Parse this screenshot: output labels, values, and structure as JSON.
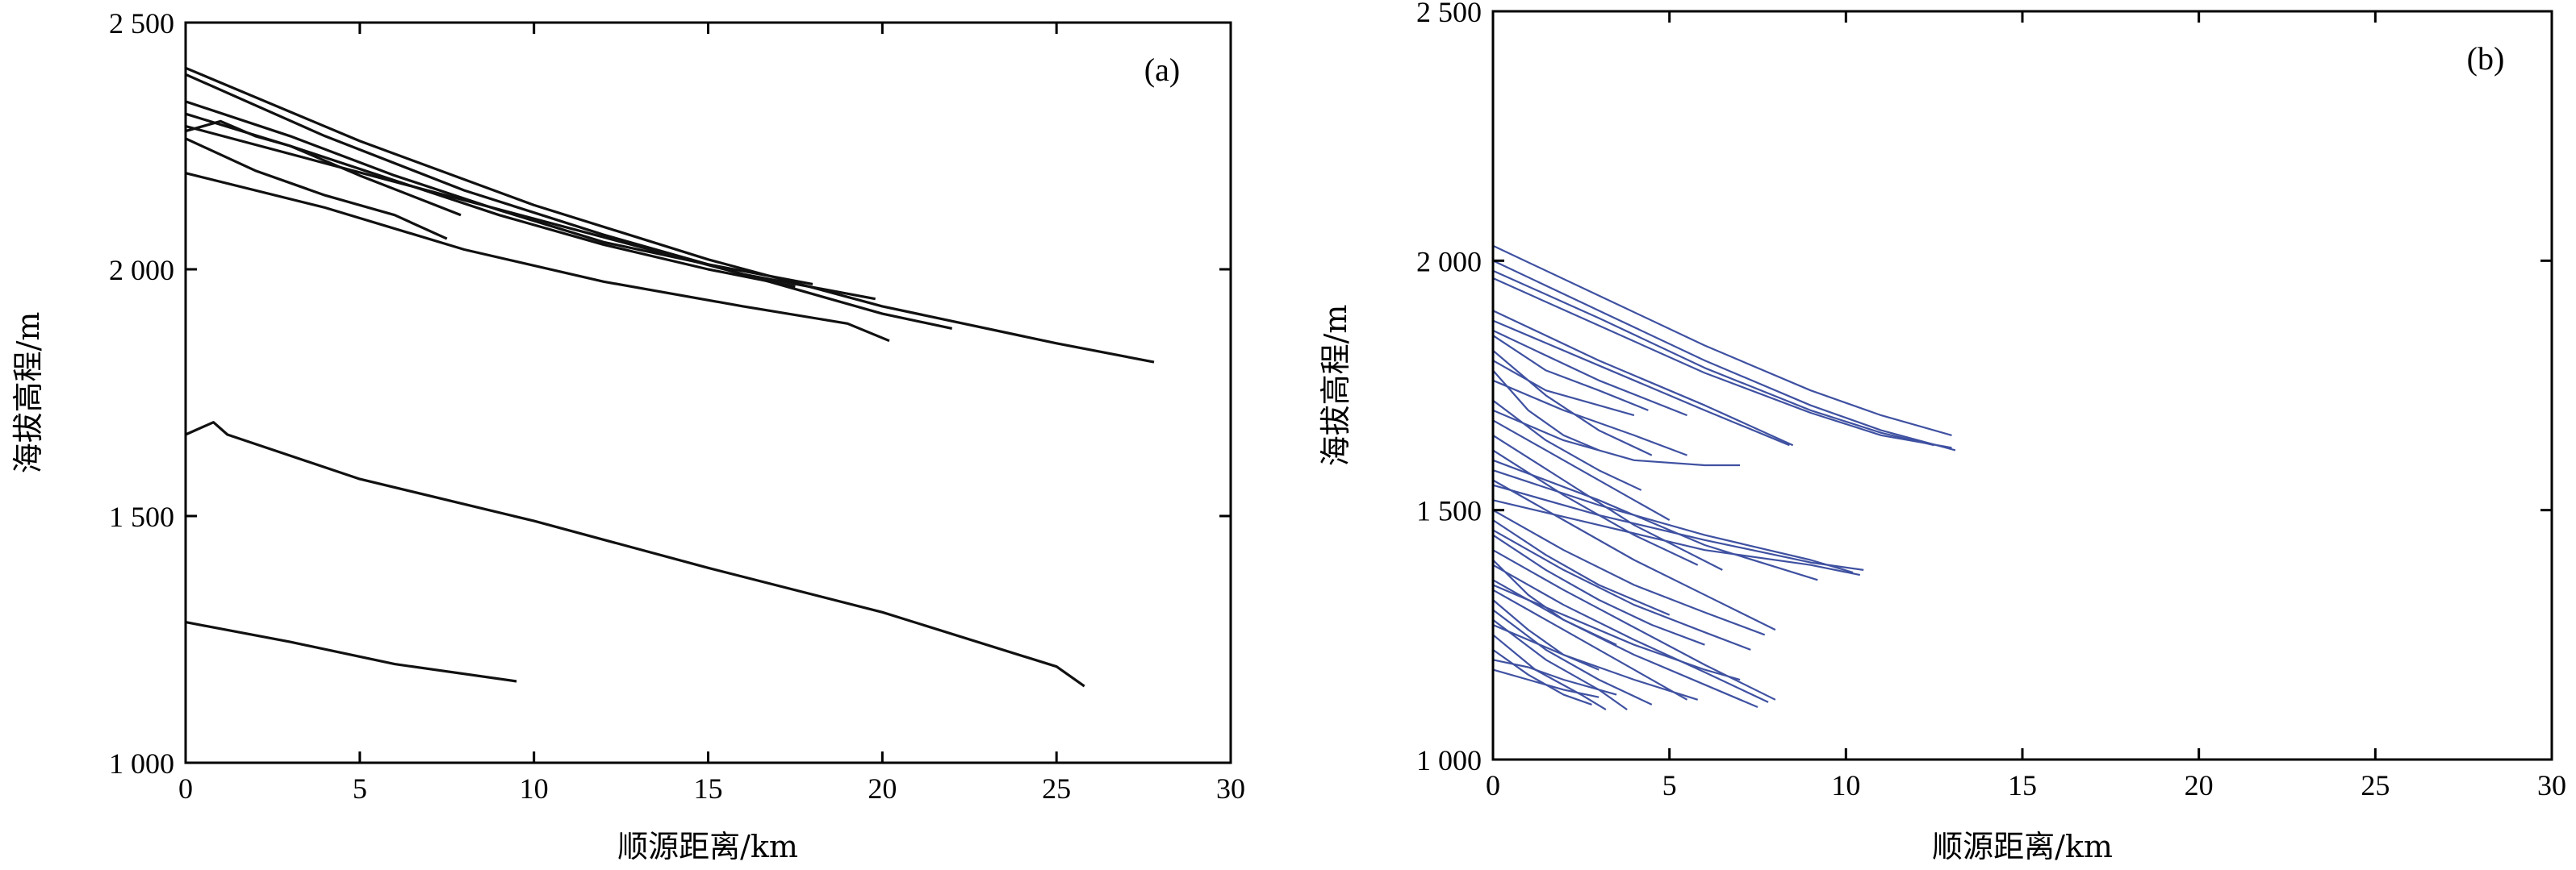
{
  "chart_data": [
    {
      "type": "line",
      "panel_label": "(a)",
      "xlabel": "顺源距离/km",
      "ylabel": "海拔高程/m",
      "xlim": [
        0,
        30
      ],
      "ylim": [
        1000,
        2500
      ],
      "xticks": [
        0,
        5,
        10,
        15,
        20,
        25,
        30
      ],
      "yticks": [
        1000,
        1500,
        2000,
        2500
      ],
      "ytick_labels": [
        "1 000",
        "1 500",
        "2 000",
        "2 500"
      ],
      "line_color": "#111111",
      "grid": false,
      "series": [
        {
          "x": [
            0,
            5,
            10,
            15,
            20,
            25,
            27.8
          ],
          "y": [
            2408,
            2260,
            2130,
            2020,
            1925,
            1850,
            1812
          ]
        },
        {
          "x": [
            0,
            4,
            8,
            12,
            16,
            19.8
          ],
          "y": [
            2395,
            2270,
            2160,
            2070,
            1990,
            1940
          ]
        },
        {
          "x": [
            0,
            3,
            6,
            9,
            12,
            15,
            18
          ],
          "y": [
            2340,
            2270,
            2190,
            2120,
            2055,
            2010,
            1970
          ]
        },
        {
          "x": [
            0,
            3,
            6,
            9,
            12,
            15,
            17.5
          ],
          "y": [
            2315,
            2250,
            2180,
            2110,
            2050,
            2000,
            1965
          ]
        },
        {
          "x": [
            0,
            4,
            8,
            12,
            16,
            20,
            22
          ],
          "y": [
            2290,
            2215,
            2140,
            2065,
            1990,
            1910,
            1880
          ]
        },
        {
          "x": [
            0,
            1,
            2,
            3,
            5,
            7.9
          ],
          "y": [
            2280,
            2300,
            2270,
            2250,
            2190,
            2110
          ]
        },
        {
          "x": [
            0,
            2,
            4,
            6,
            7.5
          ],
          "y": [
            2265,
            2200,
            2150,
            2110,
            2062
          ]
        },
        {
          "x": [
            0,
            4,
            8,
            12,
            16,
            19,
            20.2
          ],
          "y": [
            2195,
            2125,
            2040,
            1975,
            1925,
            1890,
            1855
          ]
        },
        {
          "x": [
            0,
            0.8,
            1.2,
            5,
            10,
            15,
            20,
            25,
            25.8
          ],
          "y": [
            1665,
            1690,
            1665,
            1575,
            1490,
            1395,
            1305,
            1195,
            1155
          ]
        },
        {
          "x": [
            0,
            3,
            6,
            9.5
          ],
          "y": [
            1285,
            1245,
            1200,
            1165
          ]
        }
      ]
    },
    {
      "type": "line",
      "panel_label": "(b)",
      "xlabel": "顺源距离/km",
      "ylabel": "海拔高程/m",
      "xlim": [
        0,
        30
      ],
      "ylim": [
        1000,
        2500
      ],
      "xticks": [
        0,
        5,
        10,
        15,
        20,
        25,
        30
      ],
      "yticks": [
        1000,
        1500,
        2000,
        2500
      ],
      "ytick_labels": [
        "1 000",
        "1 500",
        "2 000",
        "2 500"
      ],
      "line_color": "#3f51a1",
      "grid": false,
      "series": [
        {
          "x": [
            0,
            3,
            6,
            9,
            11,
            13
          ],
          "y": [
            2030,
            1930,
            1830,
            1740,
            1690,
            1650
          ]
        },
        {
          "x": [
            0,
            3,
            6,
            9,
            11,
            13.1
          ],
          "y": [
            2000,
            1900,
            1800,
            1710,
            1660,
            1620
          ]
        },
        {
          "x": [
            0,
            3,
            6,
            9,
            11,
            12.5
          ],
          "y": [
            1980,
            1885,
            1785,
            1700,
            1655,
            1630
          ]
        },
        {
          "x": [
            0,
            3,
            6,
            9,
            11,
            13
          ],
          "y": [
            1965,
            1870,
            1775,
            1695,
            1650,
            1625
          ]
        },
        {
          "x": [
            0,
            3,
            6,
            8.5
          ],
          "y": [
            1900,
            1800,
            1710,
            1630
          ]
        },
        {
          "x": [
            0,
            3,
            6,
            8.4
          ],
          "y": [
            1880,
            1790,
            1700,
            1630
          ]
        },
        {
          "x": [
            0,
            3,
            5.5
          ],
          "y": [
            1860,
            1760,
            1690
          ]
        },
        {
          "x": [
            0,
            1.5,
            3,
            4.4
          ],
          "y": [
            1850,
            1780,
            1740,
            1700
          ]
        },
        {
          "x": [
            0,
            1.5,
            3,
            4
          ],
          "y": [
            1800,
            1740,
            1710,
            1690
          ]
        },
        {
          "x": [
            0,
            2,
            4,
            5.5
          ],
          "y": [
            1760,
            1700,
            1650,
            1610
          ]
        },
        {
          "x": [
            0,
            2,
            4,
            6,
            7
          ],
          "y": [
            1700,
            1640,
            1600,
            1590,
            1590
          ]
        },
        {
          "x": [
            0,
            3,
            6,
            9,
            10.5
          ],
          "y": [
            1550,
            1490,
            1440,
            1395,
            1380
          ]
        },
        {
          "x": [
            0,
            3,
            6,
            9,
            10.2
          ],
          "y": [
            1580,
            1510,
            1450,
            1400,
            1375
          ]
        },
        {
          "x": [
            0,
            3,
            6,
            9,
            10.4
          ],
          "y": [
            1520,
            1470,
            1420,
            1390,
            1370
          ]
        },
        {
          "x": [
            0,
            3,
            6,
            9.2
          ],
          "y": [
            1600,
            1520,
            1430,
            1360
          ]
        },
        {
          "x": [
            0,
            2,
            4,
            5.8
          ],
          "y": [
            1620,
            1530,
            1450,
            1390
          ]
        },
        {
          "x": [
            0,
            2,
            4,
            6,
            7.7
          ],
          "y": [
            1500,
            1420,
            1350,
            1295,
            1250
          ]
        },
        {
          "x": [
            0,
            2,
            4,
            6,
            7.3
          ],
          "y": [
            1460,
            1380,
            1310,
            1255,
            1220
          ]
        },
        {
          "x": [
            0,
            2,
            4,
            6,
            8
          ],
          "y": [
            1420,
            1340,
            1265,
            1190,
            1120
          ]
        },
        {
          "x": [
            0,
            2,
            4,
            6,
            7.8
          ],
          "y": [
            1390,
            1310,
            1240,
            1175,
            1115
          ]
        },
        {
          "x": [
            0,
            2,
            4,
            6,
            7.5
          ],
          "y": [
            1360,
            1280,
            1210,
            1150,
            1105
          ]
        },
        {
          "x": [
            0,
            2,
            4,
            5.5
          ],
          "y": [
            1340,
            1260,
            1180,
            1120
          ]
        },
        {
          "x": [
            0,
            1.5,
            3,
            4.5
          ],
          "y": [
            1300,
            1220,
            1160,
            1110
          ]
        },
        {
          "x": [
            0,
            1.5,
            3,
            3.8
          ],
          "y": [
            1280,
            1200,
            1140,
            1100
          ]
        },
        {
          "x": [
            0,
            1.2,
            2.5,
            3.2
          ],
          "y": [
            1250,
            1180,
            1130,
            1100
          ]
        },
        {
          "x": [
            0,
            1,
            2,
            2.8
          ],
          "y": [
            1220,
            1170,
            1130,
            1110
          ]
        },
        {
          "x": [
            0,
            1,
            2,
            3
          ],
          "y": [
            1180,
            1160,
            1140,
            1125
          ]
        },
        {
          "x": [
            0,
            1,
            2,
            3.5
          ],
          "y": [
            1200,
            1185,
            1160,
            1130
          ]
        },
        {
          "x": [
            0,
            1.5,
            3,
            4.5,
            6
          ],
          "y": [
            1450,
            1380,
            1320,
            1270,
            1230
          ]
        },
        {
          "x": [
            0,
            2,
            4,
            6,
            8
          ],
          "y": [
            1560,
            1480,
            1400,
            1330,
            1260
          ]
        },
        {
          "x": [
            0,
            2,
            4,
            6.5
          ],
          "y": [
            1650,
            1560,
            1470,
            1380
          ]
        },
        {
          "x": [
            0,
            2,
            4,
            5
          ],
          "y": [
            1680,
            1600,
            1520,
            1480
          ]
        },
        {
          "x": [
            0,
            1.5,
            3,
            4.2
          ],
          "y": [
            1720,
            1640,
            1580,
            1540
          ]
        },
        {
          "x": [
            0,
            1,
            2,
            3
          ],
          "y": [
            1780,
            1700,
            1650,
            1620
          ]
        },
        {
          "x": [
            0,
            1.5,
            3,
            4.5
          ],
          "y": [
            1820,
            1730,
            1660,
            1610
          ]
        },
        {
          "x": [
            0,
            1,
            2,
            3.5
          ],
          "y": [
            1400,
            1330,
            1280,
            1230
          ]
        },
        {
          "x": [
            0,
            1,
            2,
            3
          ],
          "y": [
            1320,
            1260,
            1210,
            1180
          ]
        },
        {
          "x": [
            0,
            1.5,
            3,
            5
          ],
          "y": [
            1480,
            1410,
            1350,
            1290
          ]
        },
        {
          "x": [
            0,
            2,
            4,
            6,
            7
          ],
          "y": [
            1350,
            1290,
            1230,
            1180,
            1160
          ]
        },
        {
          "x": [
            0,
            2,
            4,
            5.8
          ],
          "y": [
            1270,
            1210,
            1160,
            1120
          ]
        }
      ]
    }
  ]
}
